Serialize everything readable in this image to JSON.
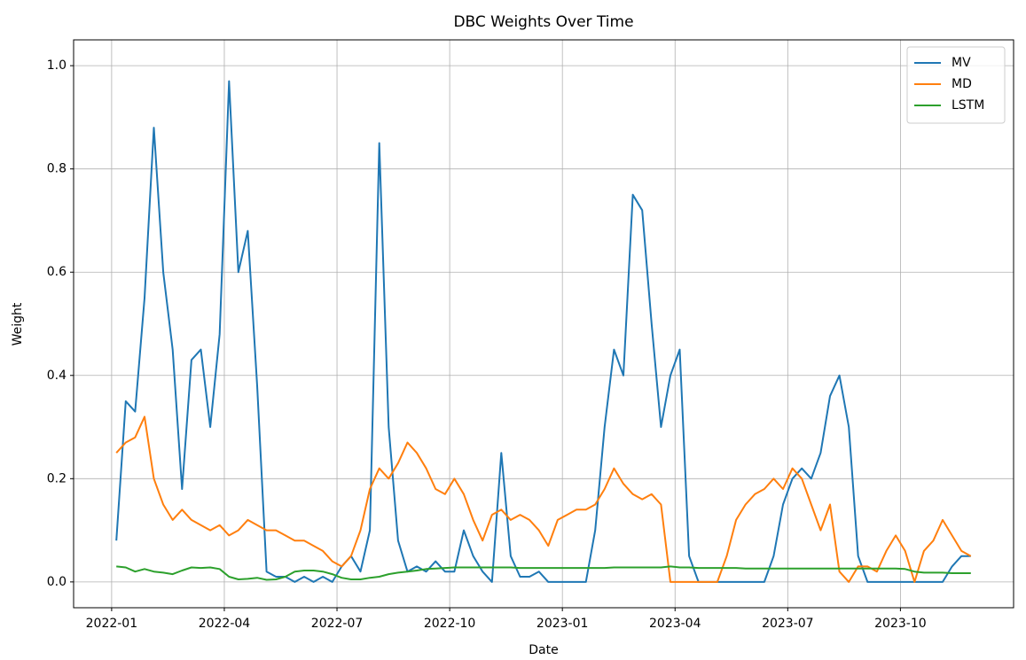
{
  "chart_data": {
    "type": "line",
    "title": "DBC Weights Over Time",
    "x_label": "Date",
    "y_label": "Weight",
    "x": [
      "2022-01",
      "2022-01",
      "2022-01",
      "2022-01",
      "2022-02",
      "2022-02",
      "2022-02",
      "2022-02",
      "2022-03",
      "2022-03",
      "2022-03",
      "2022-03",
      "2022-04",
      "2022-04",
      "2022-04",
      "2022-04",
      "2022-05",
      "2022-05",
      "2022-05",
      "2022-05",
      "2022-06",
      "2022-06",
      "2022-06",
      "2022-06",
      "2022-07",
      "2022-07",
      "2022-07",
      "2022-07",
      "2022-08",
      "2022-08",
      "2022-08",
      "2022-08",
      "2022-09",
      "2022-09",
      "2022-09",
      "2022-09",
      "2022-10",
      "2022-10",
      "2022-10",
      "2022-10",
      "2022-11",
      "2022-11",
      "2022-11",
      "2022-11",
      "2022-12",
      "2022-12",
      "2022-12",
      "2022-12",
      "2023-01",
      "2023-01",
      "2023-01",
      "2023-01",
      "2023-02",
      "2023-02",
      "2023-02",
      "2023-02",
      "2023-03",
      "2023-03",
      "2023-03",
      "2023-03",
      "2023-04",
      "2023-04",
      "2023-04",
      "2023-04",
      "2023-05",
      "2023-05",
      "2023-05",
      "2023-05",
      "2023-06",
      "2023-06",
      "2023-06",
      "2023-06",
      "2023-07",
      "2023-07",
      "2023-07",
      "2023-07",
      "2023-08",
      "2023-08",
      "2023-08",
      "2023-08",
      "2023-09",
      "2023-09",
      "2023-09",
      "2023-09",
      "2023-10",
      "2023-10",
      "2023-10",
      "2023-10",
      "2023-11",
      "2023-11",
      "2023-11",
      "2023-11"
    ],
    "series": [
      {
        "name": "MV",
        "color": "#1f77b4",
        "values": [
          0.08,
          0.35,
          0.33,
          0.55,
          0.88,
          0.6,
          0.45,
          0.18,
          0.43,
          0.45,
          0.3,
          0.48,
          0.97,
          0.6,
          0.68,
          0.38,
          0.02,
          0.01,
          0.01,
          0.0,
          0.01,
          0.0,
          0.01,
          0.0,
          0.03,
          0.05,
          0.02,
          0.1,
          0.85,
          0.3,
          0.08,
          0.02,
          0.03,
          0.02,
          0.04,
          0.02,
          0.02,
          0.1,
          0.05,
          0.02,
          0.0,
          0.25,
          0.05,
          0.01,
          0.01,
          0.02,
          0.0,
          0.0,
          0.0,
          0.0,
          0.0,
          0.1,
          0.3,
          0.45,
          0.4,
          0.75,
          0.72,
          0.5,
          0.3,
          0.4,
          0.45,
          0.05,
          0.0,
          0.0,
          0.0,
          0.0,
          0.0,
          0.0,
          0.0,
          0.0,
          0.05,
          0.15,
          0.2,
          0.22,
          0.2,
          0.25,
          0.36,
          0.4,
          0.3,
          0.05,
          0.0,
          0.0,
          0.0,
          0.0,
          0.0,
          0.0,
          0.0,
          0.0,
          0.0,
          0.03,
          0.05,
          0.05
        ]
      },
      {
        "name": "MD",
        "color": "#ff7f0e",
        "values": [
          0.25,
          0.27,
          0.28,
          0.32,
          0.2,
          0.15,
          0.12,
          0.14,
          0.12,
          0.11,
          0.1,
          0.11,
          0.09,
          0.1,
          0.12,
          0.11,
          0.1,
          0.1,
          0.09,
          0.08,
          0.08,
          0.07,
          0.06,
          0.04,
          0.03,
          0.05,
          0.1,
          0.18,
          0.22,
          0.2,
          0.23,
          0.27,
          0.25,
          0.22,
          0.18,
          0.17,
          0.2,
          0.17,
          0.12,
          0.08,
          0.13,
          0.14,
          0.12,
          0.13,
          0.12,
          0.1,
          0.07,
          0.12,
          0.13,
          0.14,
          0.14,
          0.15,
          0.18,
          0.22,
          0.19,
          0.17,
          0.16,
          0.17,
          0.15,
          0.0,
          0.0,
          0.0,
          0.0,
          0.0,
          0.0,
          0.05,
          0.12,
          0.15,
          0.17,
          0.18,
          0.2,
          0.18,
          0.22,
          0.2,
          0.15,
          0.1,
          0.15,
          0.02,
          0.0,
          0.03,
          0.03,
          0.02,
          0.06,
          0.09,
          0.06,
          0.0,
          0.06,
          0.08,
          0.12,
          0.09,
          0.06,
          0.05
        ]
      },
      {
        "name": "LSTM",
        "color": "#2ca02c",
        "values": [
          0.03,
          0.028,
          0.02,
          0.025,
          0.02,
          0.018,
          0.015,
          0.022,
          0.028,
          0.027,
          0.028,
          0.025,
          0.01,
          0.005,
          0.006,
          0.008,
          0.004,
          0.005,
          0.01,
          0.02,
          0.022,
          0.022,
          0.02,
          0.015,
          0.008,
          0.005,
          0.005,
          0.008,
          0.01,
          0.015,
          0.018,
          0.02,
          0.022,
          0.025,
          0.026,
          0.027,
          0.028,
          0.028,
          0.028,
          0.028,
          0.028,
          0.028,
          0.028,
          0.027,
          0.027,
          0.027,
          0.027,
          0.027,
          0.027,
          0.027,
          0.027,
          0.027,
          0.027,
          0.028,
          0.028,
          0.028,
          0.028,
          0.028,
          0.028,
          0.03,
          0.028,
          0.028,
          0.027,
          0.027,
          0.027,
          0.027,
          0.027,
          0.026,
          0.026,
          0.026,
          0.026,
          0.026,
          0.026,
          0.026,
          0.026,
          0.026,
          0.026,
          0.026,
          0.026,
          0.026,
          0.026,
          0.026,
          0.026,
          0.026,
          0.025,
          0.02,
          0.018,
          0.018,
          0.018,
          0.017,
          0.017,
          0.017
        ]
      }
    ],
    "xticks": [
      "2022-01",
      "2022-04",
      "2022-07",
      "2022-10",
      "2023-01",
      "2023-04",
      "2023-07",
      "2023-10"
    ],
    "ylim": [
      -0.05,
      1.05
    ],
    "yticks": [
      {
        "value": 0,
        "label": "0.0"
      },
      0.2,
      0.4,
      0.6,
      0.8,
      {
        "value": 1,
        "label": "1.0"
      }
    ],
    "grid": true,
    "legend": "upper right"
  }
}
